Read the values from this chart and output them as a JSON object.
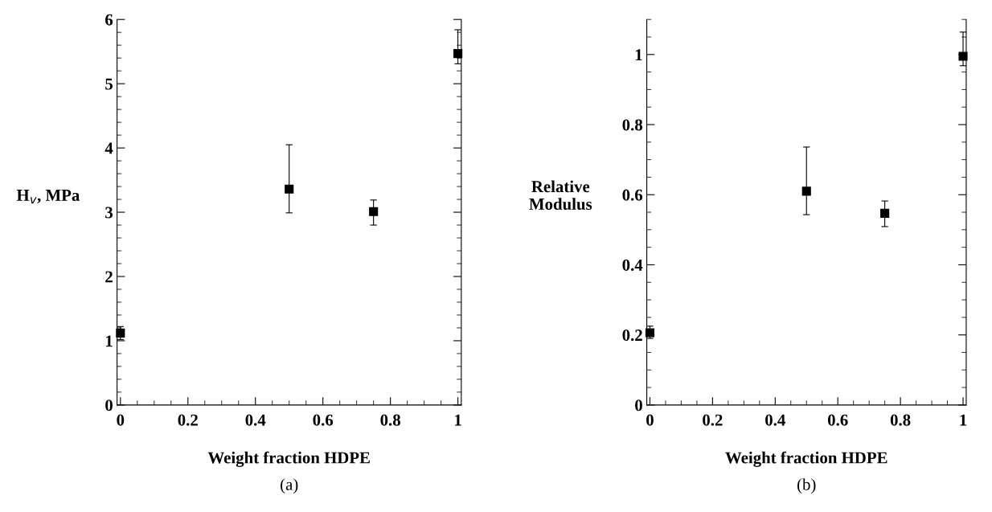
{
  "chart_data": [
    {
      "type": "scatter",
      "xlabel": "Weight fraction HDPE",
      "ylabel": "H$_{v}$, MPa",
      "annotations": [
        "(a)"
      ],
      "marker": "square",
      "x": [
        0,
        0.5,
        0.75,
        1
      ],
      "series": [
        {
          "color": "#000000",
          "values": [
            1.12,
            3.36,
            3.01,
            5.47
          ],
          "errors": [
            [
              1.02,
              1.22
            ],
            [
              2.99,
              4.05
            ],
            [
              2.8,
              3.19
            ],
            [
              5.31,
              5.84
            ]
          ]
        }
      ],
      "xlim": [
        -0.01,
        1.01
      ],
      "ylim": [
        0,
        6
      ],
      "xticks": [
        0,
        {
          "value": 0.05,
          "label": null
        },
        {
          "value": 0.1,
          "label": null
        },
        {
          "value": 0.15,
          "label": null
        },
        0.2,
        {
          "value": 0.25,
          "label": null
        },
        {
          "value": 0.3,
          "label": null
        },
        {
          "value": 0.35,
          "label": null
        },
        0.4,
        {
          "value": 0.45,
          "label": null
        },
        {
          "value": 0.5,
          "label": null
        },
        {
          "value": 0.55,
          "label": null
        },
        0.6,
        {
          "value": 0.65,
          "label": null
        },
        {
          "value": 0.7,
          "label": null
        },
        {
          "value": 0.75,
          "label": null
        },
        0.8,
        {
          "value": 0.85,
          "label": null
        },
        {
          "value": 0.9,
          "label": null
        },
        {
          "value": 0.95,
          "label": null
        },
        1
      ],
      "yticks": [
        0,
        {
          "value": 0.2,
          "label": null
        },
        {
          "value": 0.4,
          "label": null
        },
        {
          "value": 0.6,
          "label": null
        },
        {
          "value": 0.8,
          "label": null
        },
        1,
        {
          "value": 1.2,
          "label": null
        },
        {
          "value": 1.4,
          "label": null
        },
        {
          "value": 1.6,
          "label": null
        },
        {
          "value": 1.8,
          "label": null
        },
        2,
        {
          "value": 2.2,
          "label": null
        },
        {
          "value": 2.4,
          "label": null
        },
        {
          "value": 2.6,
          "label": null
        },
        {
          "value": 2.8,
          "label": null
        },
        3,
        {
          "value": 3.2,
          "label": null
        },
        {
          "value": 3.4,
          "label": null
        },
        {
          "value": 3.6,
          "label": null
        },
        {
          "value": 3.8,
          "label": null
        },
        4,
        {
          "value": 4.2,
          "label": null
        },
        {
          "value": 4.4,
          "label": null
        },
        {
          "value": 4.6,
          "label": null
        },
        {
          "value": 4.8,
          "label": null
        },
        5,
        {
          "value": 5.2,
          "label": null
        },
        {
          "value": 5.4,
          "label": null
        },
        {
          "value": 5.6,
          "label": null
        },
        {
          "value": 5.8,
          "label": null
        },
        6
      ],
      "grid": false,
      "legend": false
    },
    {
      "type": "scatter",
      "xlabel": "Weight fraction HDPE",
      "ylabel": "Relative\nModulus",
      "annotations": [
        "(b)"
      ],
      "marker": "square",
      "x": [
        0,
        0.5,
        0.75,
        1
      ],
      "series": [
        {
          "color": "#000000",
          "values": [
            0.206,
            0.61,
            0.547,
            0.995
          ],
          "errors": [
            [
              0.19,
              0.225
            ],
            [
              0.543,
              0.736
            ],
            [
              0.509,
              0.582
            ],
            [
              0.968,
              1.064
            ]
          ]
        }
      ],
      "xlim": [
        -0.01,
        1.01
      ],
      "ylim": [
        0,
        1.1
      ],
      "xticks": [
        0,
        {
          "value": 0.05,
          "label": null
        },
        {
          "value": 0.1,
          "label": null
        },
        {
          "value": 0.15,
          "label": null
        },
        0.2,
        {
          "value": 0.25,
          "label": null
        },
        {
          "value": 0.3,
          "label": null
        },
        {
          "value": 0.35,
          "label": null
        },
        0.4,
        {
          "value": 0.45,
          "label": null
        },
        {
          "value": 0.5,
          "label": null
        },
        {
          "value": 0.55,
          "label": null
        },
        0.6,
        {
          "value": 0.65,
          "label": null
        },
        {
          "value": 0.7,
          "label": null
        },
        {
          "value": 0.75,
          "label": null
        },
        0.8,
        {
          "value": 0.85,
          "label": null
        },
        {
          "value": 0.9,
          "label": null
        },
        {
          "value": 0.95,
          "label": null
        },
        1
      ],
      "yticks": [
        0,
        {
          "value": 0.05,
          "label": null
        },
        {
          "value": 0.1,
          "label": null
        },
        {
          "value": 0.15,
          "label": null
        },
        0.2,
        {
          "value": 0.25,
          "label": null
        },
        {
          "value": 0.3,
          "label": null
        },
        {
          "value": 0.35,
          "label": null
        },
        0.4,
        {
          "value": 0.45,
          "label": null
        },
        {
          "value": 0.5,
          "label": null
        },
        {
          "value": 0.55,
          "label": null
        },
        0.6,
        {
          "value": 0.65,
          "label": null
        },
        {
          "value": 0.7,
          "label": null
        },
        {
          "value": 0.75,
          "label": null
        },
        0.8,
        {
          "value": 0.85,
          "label": null
        },
        {
          "value": 0.9,
          "label": null
        },
        {
          "value": 0.95,
          "label": null
        },
        1,
        {
          "value": 1.05,
          "label": null
        },
        {
          "value": 1.1,
          "label": null
        }
      ],
      "grid": false,
      "legend": false
    }
  ]
}
